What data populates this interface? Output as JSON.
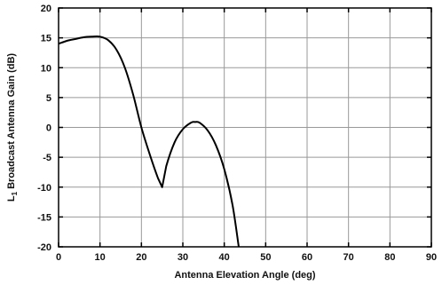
{
  "chart_data": {
    "type": "line",
    "xlabel": "Antenna Elevation Angle (deg)",
    "ylabel": "Broadcast Antenna Gain (dB)",
    "ylabel_prefix": "L",
    "ylabel_subscript": "1",
    "xlim": [
      0,
      90
    ],
    "ylim": [
      -20,
      20
    ],
    "xticks": [
      0,
      10,
      20,
      30,
      40,
      50,
      60,
      70,
      80,
      90
    ],
    "yticks": [
      20,
      15,
      10,
      5,
      0,
      -5,
      -10,
      -15,
      -20
    ],
    "grid": true,
    "colors": {
      "line": "#000000",
      "grid": "#999999",
      "axis": "#000000"
    },
    "series": [
      {
        "x": [
          0,
          2,
          4,
          6,
          8,
          10,
          12,
          14,
          16,
          18,
          20,
          22,
          24,
          25,
          26,
          28,
          30,
          32,
          33,
          34,
          36,
          38,
          40,
          42,
          43.5
        ],
        "y": [
          14,
          14.5,
          14.8,
          15.1,
          15.2,
          15.2,
          14.6,
          13.0,
          10.0,
          5.5,
          0.0,
          -4.5,
          -8.5,
          -10.0,
          -6.5,
          -2.5,
          -0.3,
          0.8,
          0.9,
          0.8,
          -0.5,
          -3.0,
          -7.0,
          -13.0,
          -20.0
        ]
      }
    ]
  }
}
